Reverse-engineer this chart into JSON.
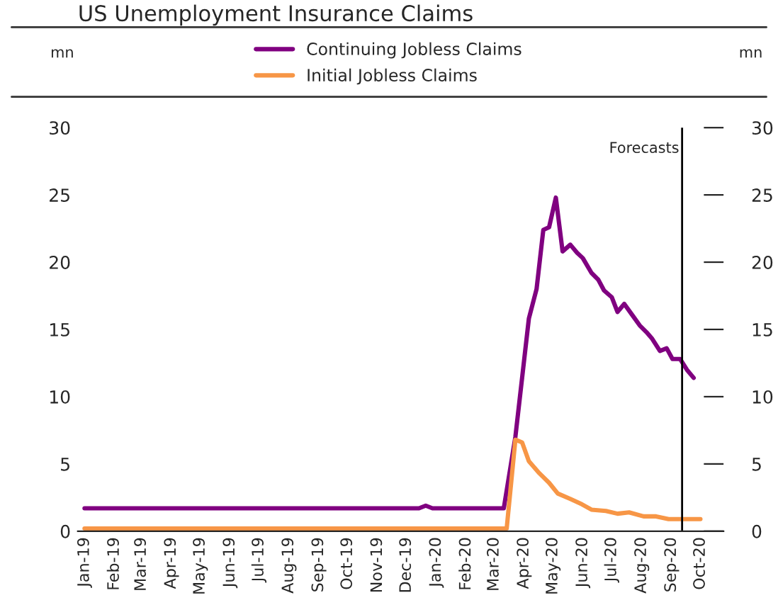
{
  "chart_data": {
    "type": "line",
    "title": "US Unemployment Insurance Claims",
    "ylabel": "mn",
    "y2label": "mn",
    "series": [
      {
        "name": "Continuing Jobless Claims",
        "color": "#800080",
        "x": [
          "2019-01-01",
          "2019-12-14",
          "2019-12-21",
          "2019-12-28",
          "2020-03-11",
          "2020-03-23",
          "2020-04-06",
          "2020-04-14",
          "2020-04-21",
          "2020-04-27",
          "2020-05-04",
          "2020-05-11",
          "2020-05-19",
          "2020-05-26",
          "2020-06-01",
          "2020-06-10",
          "2020-06-17",
          "2020-06-23",
          "2020-07-01",
          "2020-07-07",
          "2020-07-14",
          "2020-07-22",
          "2020-07-30",
          "2020-08-06",
          "2020-08-12",
          "2020-08-20",
          "2020-08-27",
          "2020-09-02",
          "2020-09-10",
          "2020-09-17",
          "2020-09-24"
        ],
        "values": [
          1.7,
          1.7,
          1.9,
          1.7,
          1.7,
          7,
          15.8,
          18,
          22.4,
          22.6,
          24.8,
          20.8,
          21.3,
          20.7,
          20.3,
          19.2,
          18.7,
          17.9,
          17.4,
          16.3,
          16.9,
          16.1,
          15.3,
          14.8,
          14.3,
          13.4,
          13.6,
          12.8,
          12.8,
          12,
          11.4
        ]
      },
      {
        "name": "Initial Jobless Claims",
        "color": "#f79646",
        "x": [
          "2019-01-01",
          "2020-03-14",
          "2020-03-23",
          "2020-03-30",
          "2020-04-06",
          "2020-04-17",
          "2020-04-27",
          "2020-05-06",
          "2020-05-19",
          "2020-05-31",
          "2020-06-10",
          "2020-06-25",
          "2020-07-07",
          "2020-07-19",
          "2020-08-03",
          "2020-08-16",
          "2020-08-29",
          "2020-10-01"
        ],
        "values": [
          0.2,
          0.2,
          6.8,
          6.6,
          5.2,
          4.3,
          3.6,
          2.8,
          2.4,
          2,
          1.6,
          1.5,
          1.3,
          1.4,
          1.1,
          1.1,
          0.9,
          0.9
        ]
      }
    ],
    "xlim": [
      "2018-12-25",
      "2020-10-25"
    ],
    "xticks": [
      {
        "value": "2019-01-01",
        "label": "Jan-19"
      },
      {
        "value": "2019-02-01",
        "label": "Feb-19"
      },
      {
        "value": "2019-03-01",
        "label": "Mar-19"
      },
      {
        "value": "2019-04-01",
        "label": "Apr-19"
      },
      {
        "value": "2019-05-01",
        "label": "May-19"
      },
      {
        "value": "2019-06-01",
        "label": "Jun-19"
      },
      {
        "value": "2019-07-01",
        "label": "Jul-19"
      },
      {
        "value": "2019-08-01",
        "label": "Aug-19"
      },
      {
        "value": "2019-09-01",
        "label": "Sep-19"
      },
      {
        "value": "2019-10-01",
        "label": "Oct-19"
      },
      {
        "value": "2019-11-01",
        "label": "Nov-19"
      },
      {
        "value": "2019-12-01",
        "label": "Dec-19"
      },
      {
        "value": "2020-01-01",
        "label": "Jan-20"
      },
      {
        "value": "2020-02-01",
        "label": "Feb-20"
      },
      {
        "value": "2020-03-01",
        "label": "Mar-20"
      },
      {
        "value": "2020-04-01",
        "label": "Apr-20"
      },
      {
        "value": "2020-05-01",
        "label": "May-20"
      },
      {
        "value": "2020-06-01",
        "label": "Jun-20"
      },
      {
        "value": "2020-07-01",
        "label": "Jul-20"
      },
      {
        "value": "2020-08-01",
        "label": "Aug-20"
      },
      {
        "value": "2020-09-01",
        "label": "Sep-20"
      },
      {
        "value": "2020-10-01",
        "label": "Oct-20"
      }
    ],
    "ylim": [
      0,
      30
    ],
    "yticks": [
      0,
      5,
      10,
      15,
      20,
      25,
      30
    ],
    "y2lim": [
      0,
      30
    ],
    "y2ticks": [
      0,
      5,
      10,
      15,
      20,
      25,
      30
    ],
    "ref_lines": [
      {
        "axis": "x",
        "value": "2020-09-12",
        "label": "Forecasts",
        "color": "#000000"
      }
    ],
    "legend": "top",
    "grid": false,
    "marker": "none",
    "line_style": "solid"
  }
}
